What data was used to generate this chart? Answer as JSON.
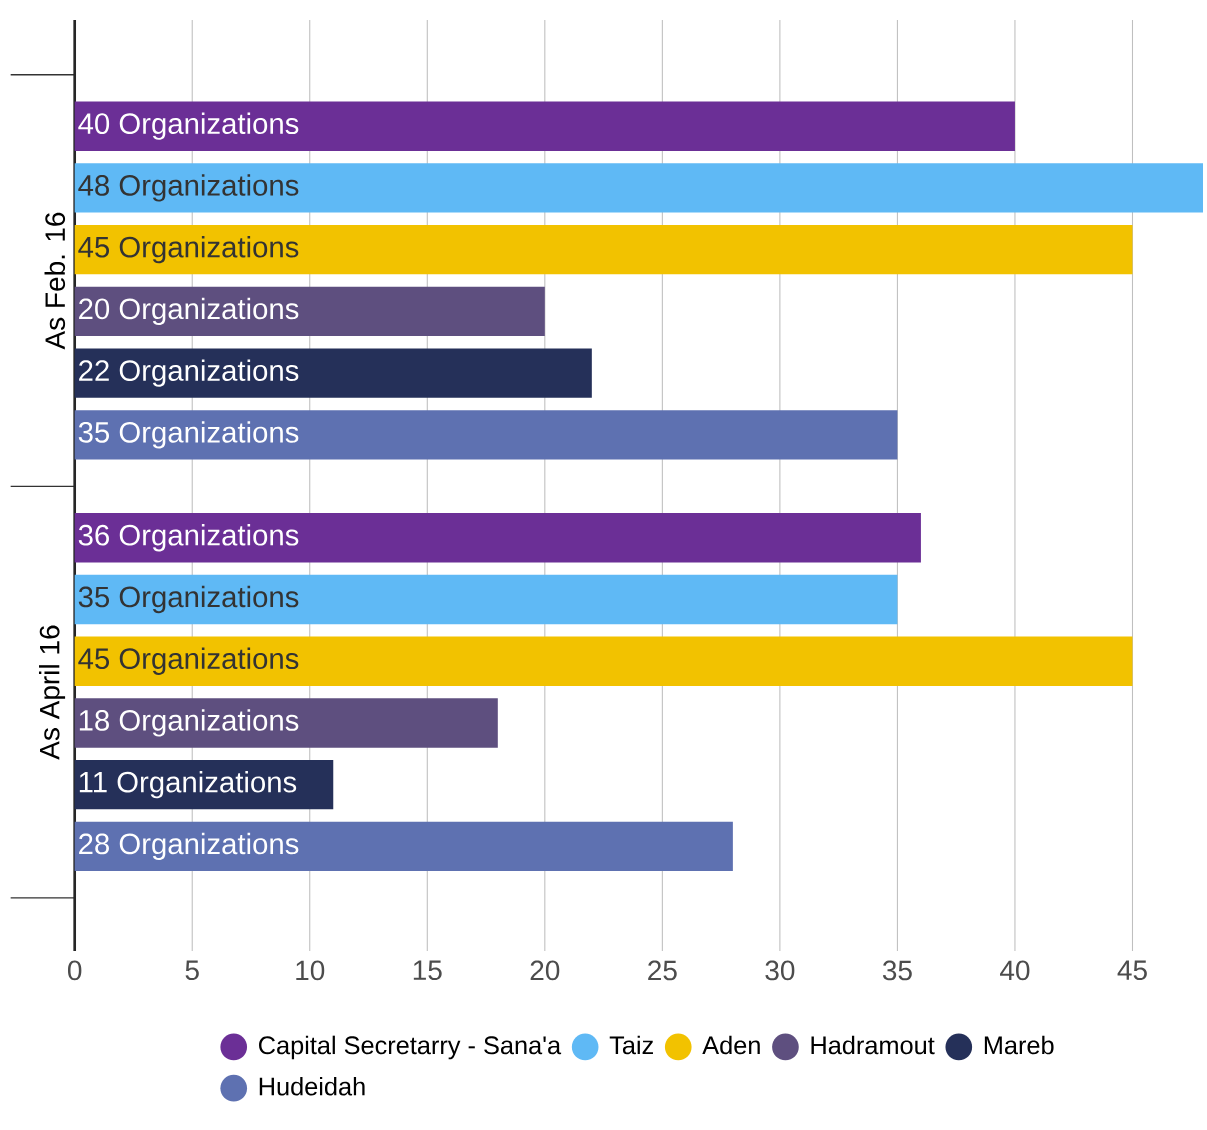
{
  "chart_data": {
    "type": "bar",
    "orientation": "horizontal",
    "categories": [
      "As Feb. 16",
      "As April 16"
    ],
    "series": [
      {
        "name": "Capital Secretarry - Sana'a",
        "color": "#6b2f96",
        "values": [
          40,
          36
        ],
        "value_labels": [
          "40 Organizations",
          "36 Organizations"
        ]
      },
      {
        "name": "Taiz",
        "color": "#5fb9f5",
        "values": [
          48,
          35
        ],
        "value_labels": [
          "48 Organizations",
          "35 Organizations"
        ]
      },
      {
        "name": "Aden",
        "color": "#f2c200",
        "values": [
          45,
          45
        ],
        "value_labels": [
          "45 Organizations",
          "45 Organizations"
        ]
      },
      {
        "name": "Hadramout",
        "color": "#5e4f7f",
        "values": [
          20,
          18
        ],
        "value_labels": [
          "20 Organizations",
          "18 Organizations"
        ]
      },
      {
        "name": "Mareb",
        "color": "#253059",
        "values": [
          22,
          11
        ],
        "value_labels": [
          "22 Organizations",
          "11 Organizations"
        ]
      },
      {
        "name": "Hudeidah",
        "color": "#5e71b1",
        "values": [
          35,
          28
        ],
        "value_labels": [
          "35 Organizations",
          "28 Organizations"
        ]
      }
    ],
    "xlim": [
      0,
      48
    ],
    "xticks": [
      0,
      5,
      10,
      15,
      20,
      25,
      30,
      35,
      40,
      45
    ],
    "grid": "x",
    "legend": "bottom"
  }
}
